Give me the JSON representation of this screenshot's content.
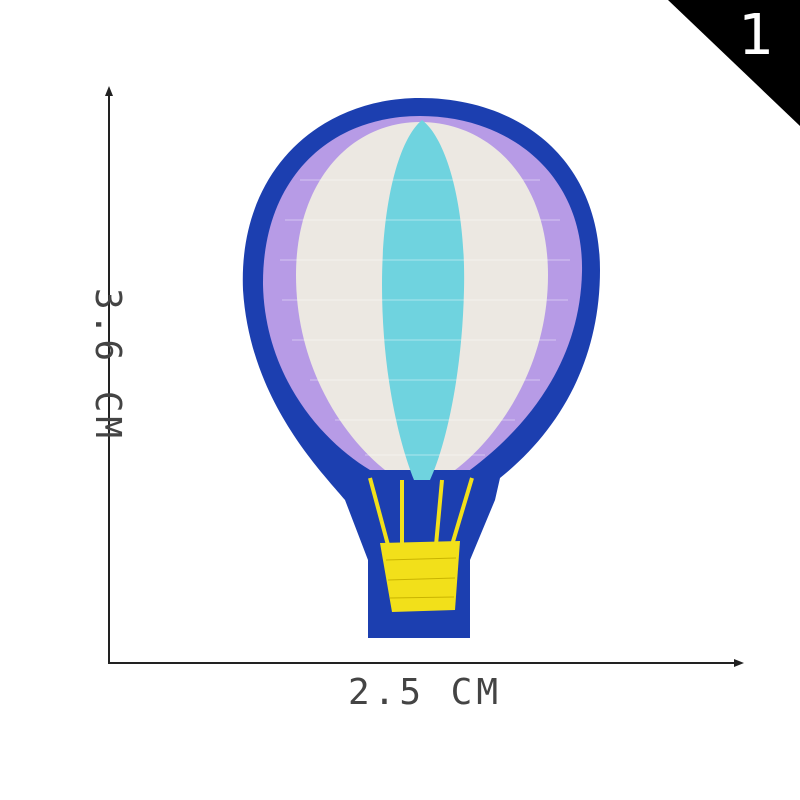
{
  "badge": {
    "number": "1"
  },
  "dimensions": {
    "width_label": "2.5 CM",
    "height_label": "3.6 CM"
  },
  "colors": {
    "felt_blue": "#1c3fb0",
    "lavender": "#b79be6",
    "cream": "#ece8e2",
    "aqua": "#6fd3df",
    "gold": "#f2e01a",
    "axis": "#222222",
    "badge": "#000000"
  },
  "patch": {
    "subject": "hot-air-balloon-icon"
  }
}
